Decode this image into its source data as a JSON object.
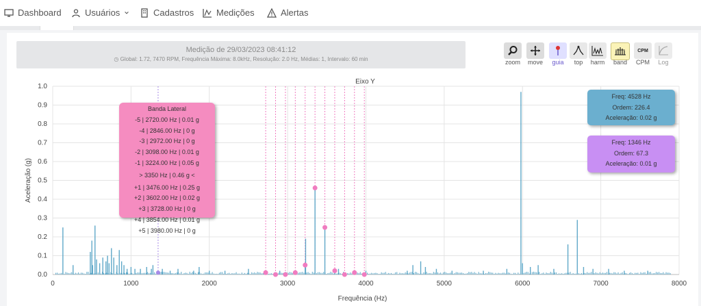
{
  "nav": {
    "items": [
      {
        "label": "Dashboard",
        "icon": "monitor-icon"
      },
      {
        "label": "Usuários",
        "icon": "user-icon"
      },
      {
        "label": "Cadastros",
        "icon": "building-icon"
      },
      {
        "label": "Medições",
        "icon": "chart-icon"
      },
      {
        "label": "Alertas",
        "icon": "warning-icon"
      }
    ]
  },
  "info": {
    "title": "Medição de 29/03/2023 08:41:12",
    "subtitle": "Global: 1.72, 7470 RPM, Frequência Máxima: 8.0kHz, Resolução: 2.0 Hz, Médias: 1, Intervalo: 60 min"
  },
  "toolbar": {
    "buttons": [
      {
        "label": "zoom",
        "icon": "zoom-icon"
      },
      {
        "label": "move",
        "icon": "move-icon"
      },
      {
        "label": "guia",
        "icon": "guide-icon"
      },
      {
        "label": "top",
        "icon": "peak-icon"
      },
      {
        "label": "harm",
        "icon": "harmonic-icon"
      },
      {
        "label": "band",
        "icon": "band-icon"
      },
      {
        "label": "CPM",
        "icon": "cpm-icon"
      },
      {
        "label": "Log",
        "icon": "log-icon"
      }
    ]
  },
  "tooltips": {
    "lateral": {
      "title": "Banda Lateral",
      "lines": [
        "-5 | 2720.00 Hz | 0.01 g",
        "-4 | 2846.00 Hz | 0 g",
        "-3 | 2972.00 Hz | 0 g",
        "-2 | 3098.00 Hz | 0.01 g",
        "-1 | 3224.00 Hz | 0.05 g",
        "> 3350 Hz | 0.46 g <",
        "+1 | 3476.00 Hz | 0.25 g",
        "+2 | 3602.00 Hz | 0.02 g",
        "+3 | 3728.00 Hz | 0 g",
        "+4 | 3854.00 Hz | 0.01 g",
        "+5 | 3980.00 Hz | 0 g"
      ]
    },
    "blue": {
      "freq": "Freq: 4528 Hz",
      "order": "Ordem: 226.4",
      "accel": "Aceleração: 0.02 g"
    },
    "purple": {
      "freq": "Freq: 1346 Hz",
      "order": "Ordem: 67.3",
      "accel": "Aceleração: 0.01 g"
    }
  },
  "colors": {
    "spectrum": "#5fa8c8",
    "sideband": "#f07cc0",
    "guide": "#a78be8"
  },
  "chart_data": {
    "type": "line",
    "title": "Eixo Y",
    "xlabel": "Frequência (Hz)",
    "ylabel": "Aceleração (g)",
    "xlim": [
      0,
      8000
    ],
    "ylim": [
      0,
      1.0
    ],
    "xticks": [
      0,
      1000,
      2000,
      3000,
      4000,
      5000,
      6000,
      7000,
      8000
    ],
    "yticks": [
      0,
      0.1,
      0.2,
      0.3,
      0.4,
      0.5,
      0.6,
      0.7,
      0.8,
      0.9,
      1.0
    ],
    "peaks": [
      {
        "x": 130,
        "y": 0.25
      },
      {
        "x": 260,
        "y": 0.05
      },
      {
        "x": 480,
        "y": 0.12
      },
      {
        "x": 500,
        "y": 0.18
      },
      {
        "x": 510,
        "y": 0.05
      },
      {
        "x": 540,
        "y": 0.26
      },
      {
        "x": 560,
        "y": 0.08
      },
      {
        "x": 600,
        "y": 0.06
      },
      {
        "x": 640,
        "y": 0.09
      },
      {
        "x": 680,
        "y": 0.07
      },
      {
        "x": 700,
        "y": 0.1
      },
      {
        "x": 720,
        "y": 0.06
      },
      {
        "x": 750,
        "y": 0.14
      },
      {
        "x": 780,
        "y": 0.09
      },
      {
        "x": 820,
        "y": 0.05
      },
      {
        "x": 850,
        "y": 0.13
      },
      {
        "x": 880,
        "y": 0.07
      },
      {
        "x": 910,
        "y": 0.05
      },
      {
        "x": 950,
        "y": 0.03
      },
      {
        "x": 1000,
        "y": 0.04
      },
      {
        "x": 1050,
        "y": 0.03
      },
      {
        "x": 1120,
        "y": 0.03
      },
      {
        "x": 1200,
        "y": 0.04
      },
      {
        "x": 1260,
        "y": 0.03
      },
      {
        "x": 1280,
        "y": 0.05
      },
      {
        "x": 1346,
        "y": 0.01
      },
      {
        "x": 1400,
        "y": 0.03
      },
      {
        "x": 1500,
        "y": 0.02
      },
      {
        "x": 1600,
        "y": 0.03
      },
      {
        "x": 1800,
        "y": 0.02
      },
      {
        "x": 1870,
        "y": 0.04
      },
      {
        "x": 2000,
        "y": 0.02
      },
      {
        "x": 2200,
        "y": 0.02
      },
      {
        "x": 2500,
        "y": 0.03
      },
      {
        "x": 2700,
        "y": 0.01
      },
      {
        "x": 2900,
        "y": 0.02
      },
      {
        "x": 3224,
        "y": 0.05
      },
      {
        "x": 3230,
        "y": 0.19
      },
      {
        "x": 3350,
        "y": 0.46
      },
      {
        "x": 3476,
        "y": 0.25
      },
      {
        "x": 3602,
        "y": 0.02
      },
      {
        "x": 3650,
        "y": 0.03
      },
      {
        "x": 4000,
        "y": 0.02
      },
      {
        "x": 4528,
        "y": 0.02
      },
      {
        "x": 4600,
        "y": 0.05
      },
      {
        "x": 4700,
        "y": 0.07
      },
      {
        "x": 4760,
        "y": 0.04
      },
      {
        "x": 4900,
        "y": 0.03
      },
      {
        "x": 5100,
        "y": 0.02
      },
      {
        "x": 5500,
        "y": 0.02
      },
      {
        "x": 5800,
        "y": 0.03
      },
      {
        "x": 5980,
        "y": 0.97
      },
      {
        "x": 6000,
        "y": 0.06
      },
      {
        "x": 6100,
        "y": 0.04
      },
      {
        "x": 6200,
        "y": 0.05
      },
      {
        "x": 6400,
        "y": 0.03
      },
      {
        "x": 6580,
        "y": 0.16
      },
      {
        "x": 6700,
        "y": 0.29
      },
      {
        "x": 6780,
        "y": 0.04
      },
      {
        "x": 6900,
        "y": 0.03
      },
      {
        "x": 7100,
        "y": 0.03
      },
      {
        "x": 7300,
        "y": 0.02
      },
      {
        "x": 7600,
        "y": 0.02
      }
    ],
    "sidebands": [
      {
        "x": 2720,
        "y": 0.01
      },
      {
        "x": 2846,
        "y": 0
      },
      {
        "x": 2972,
        "y": 0
      },
      {
        "x": 3098,
        "y": 0.01
      },
      {
        "x": 3224,
        "y": 0.05
      },
      {
        "x": 3350,
        "y": 0.46
      },
      {
        "x": 3476,
        "y": 0.25
      },
      {
        "x": 3602,
        "y": 0.02
      },
      {
        "x": 3728,
        "y": 0
      },
      {
        "x": 3854,
        "y": 0.01
      },
      {
        "x": 3980,
        "y": 0
      }
    ],
    "guide_x": 1346
  }
}
